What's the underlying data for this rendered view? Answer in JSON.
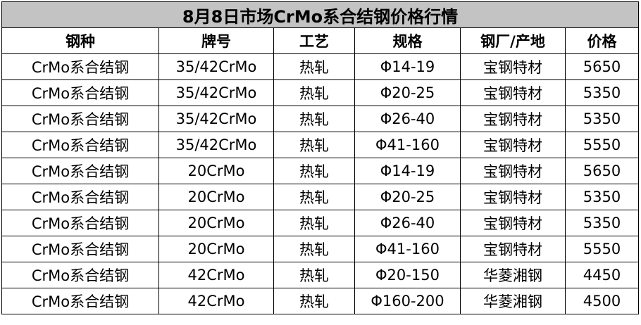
{
  "title": "8月8日市场CrMo系合结钢价格行情",
  "headers": [
    "钢种",
    "牌号",
    "工艺",
    "规格",
    "钢厂/产地",
    "价格"
  ],
  "rows": [
    [
      "CrMo系合结钢",
      "35/42CrMo",
      "热轧",
      "Φ14-19",
      "宝钢特材",
      "5650"
    ],
    [
      "CrMo系合结钢",
      "35/42CrMo",
      "热轧",
      "Φ20-25",
      "宝钢特材",
      "5350"
    ],
    [
      "CrMo系合结钢",
      "35/42CrMo",
      "热轧",
      "Φ26-40",
      "宝钢特材",
      "5350"
    ],
    [
      "CrMo系合结钢",
      "35/42CrMo",
      "热轧",
      "Φ41-160",
      "宝钢特材",
      "5550"
    ],
    [
      "CrMo系合结钢",
      "20CrMo",
      "热轧",
      "Φ14-19",
      "宝钢特材",
      "5650"
    ],
    [
      "CrMo系合结钢",
      "20CrMo",
      "热轧",
      "Φ20-25",
      "宝钢特材",
      "5350"
    ],
    [
      "CrMo系合结钢",
      "20CrMo",
      "热轧",
      "Φ26-40",
      "宝钢特材",
      "5350"
    ],
    [
      "CrMo系合结钢",
      "20CrMo",
      "热轧",
      "Φ41-160",
      "宝钢特材",
      "5550"
    ],
    [
      "CrMo系合结钢",
      "42CrMo",
      "热轧",
      "Φ20-150",
      "华菱湘钢",
      "4450"
    ],
    [
      "CrMo系合结钢",
      "42CrMo",
      "热轧",
      "Φ160-200",
      "华菱湘钢",
      "4500"
    ]
  ],
  "colors": {
    "title_background": "#c3c3c3"
  }
}
